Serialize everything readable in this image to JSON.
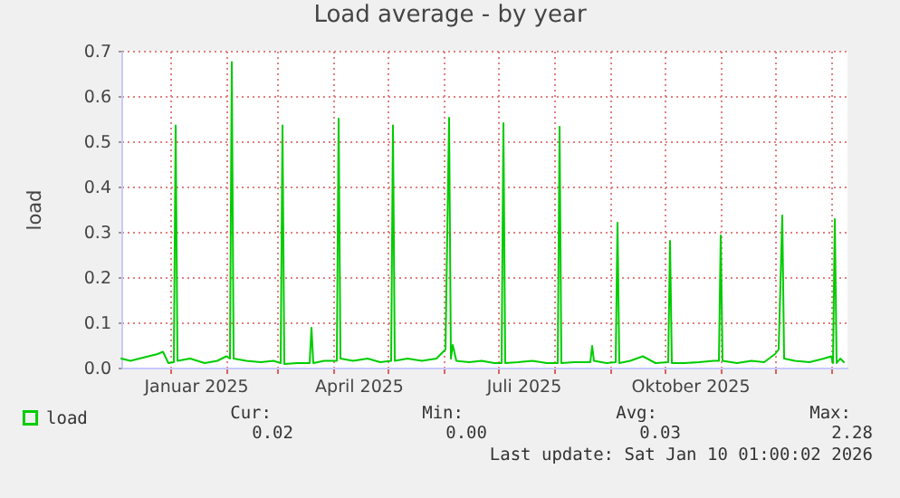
{
  "chart_data": {
    "type": "line",
    "title": "Load average - by year",
    "ylabel": "load",
    "x": [
      "2024-12-05",
      "2024-12-10",
      "2024-12-15",
      "2024-12-20",
      "2024-12-25",
      "2024-12-28",
      "2024-12-31",
      "2025-01-03",
      "2025-01-04",
      "2025-01-05",
      "2025-01-12",
      "2025-01-20",
      "2025-01-27",
      "2025-02-01",
      "2025-02-03",
      "2025-02-04",
      "2025-02-05",
      "2025-02-12",
      "2025-02-20",
      "2025-02-27",
      "2025-03-03",
      "2025-03-04",
      "2025-03-05",
      "2025-03-12",
      "2025-03-19",
      "2025-03-20",
      "2025-03-21",
      "2025-03-27",
      "2025-04-03",
      "2025-04-04",
      "2025-04-05",
      "2025-04-12",
      "2025-04-20",
      "2025-04-27",
      "2025-05-03",
      "2025-05-04",
      "2025-05-05",
      "2025-05-12",
      "2025-05-20",
      "2025-05-28",
      "2025-06-02",
      "2025-06-04",
      "2025-06-05",
      "2025-06-06",
      "2025-06-08",
      "2025-06-15",
      "2025-06-22",
      "2025-06-29",
      "2025-07-03",
      "2025-07-04",
      "2025-07-05",
      "2025-07-12",
      "2025-07-20",
      "2025-07-28",
      "2025-08-03",
      "2025-08-04",
      "2025-08-05",
      "2025-08-12",
      "2025-08-21",
      "2025-08-22",
      "2025-08-23",
      "2025-08-30",
      "2025-09-04",
      "2025-09-05",
      "2025-09-06",
      "2025-09-12",
      "2025-09-19",
      "2025-09-26",
      "2025-10-03",
      "2025-10-04",
      "2025-10-05",
      "2025-10-12",
      "2025-10-20",
      "2025-10-28",
      "2025-10-31",
      "2025-11-01",
      "2025-11-02",
      "2025-11-10",
      "2025-11-18",
      "2025-11-25",
      "2025-12-01",
      "2025-12-03",
      "2025-12-05",
      "2025-12-06",
      "2025-12-12",
      "2025-12-20",
      "2025-12-28",
      "2026-01-01",
      "2026-01-02",
      "2026-01-03",
      "2026-01-04",
      "2026-01-06",
      "2026-01-08"
    ],
    "series": [
      {
        "name": "load",
        "color": "#00cc00",
        "values": [
          0.02,
          0.015,
          0.02,
          0.025,
          0.03,
          0.035,
          0.01,
          0.012,
          0.535,
          0.015,
          0.02,
          0.01,
          0.015,
          0.025,
          0.02,
          0.675,
          0.02,
          0.015,
          0.012,
          0.015,
          0.01,
          0.535,
          0.008,
          0.01,
          0.01,
          0.088,
          0.01,
          0.015,
          0.015,
          0.55,
          0.02,
          0.015,
          0.02,
          0.012,
          0.015,
          0.535,
          0.015,
          0.02,
          0.015,
          0.02,
          0.04,
          0.552,
          0.02,
          0.05,
          0.015,
          0.012,
          0.015,
          0.01,
          0.01,
          0.54,
          0.01,
          0.012,
          0.015,
          0.01,
          0.01,
          0.532,
          0.01,
          0.012,
          0.012,
          0.048,
          0.015,
          0.01,
          0.012,
          0.32,
          0.01,
          0.015,
          0.025,
          0.01,
          0.012,
          0.28,
          0.01,
          0.01,
          0.012,
          0.015,
          0.015,
          0.292,
          0.015,
          0.01,
          0.015,
          0.012,
          0.03,
          0.04,
          0.336,
          0.02,
          0.015,
          0.012,
          0.02,
          0.025,
          0.01,
          0.328,
          0.01,
          0.02,
          0.012
        ]
      }
    ],
    "xlim": [
      "2024-12-05",
      "2026-01-10"
    ],
    "xticks": [
      {
        "value": "2025-01-01",
        "label": null
      },
      {
        "value": "2025-01-15",
        "label": "Januar 2025"
      },
      {
        "value": "2025-02-01",
        "label": null
      },
      {
        "value": "2025-03-01",
        "label": null
      },
      {
        "value": "2025-04-01",
        "label": null
      },
      {
        "value": "2025-04-15",
        "label": "April 2025"
      },
      {
        "value": "2025-05-01",
        "label": null
      },
      {
        "value": "2025-06-01",
        "label": null
      },
      {
        "value": "2025-07-01",
        "label": null
      },
      {
        "value": "2025-07-15",
        "label": "Juli 2025"
      },
      {
        "value": "2025-08-01",
        "label": null
      },
      {
        "value": "2025-09-01",
        "label": null
      },
      {
        "value": "2025-10-01",
        "label": null
      },
      {
        "value": "2025-10-15",
        "label": "Oktober 2025"
      },
      {
        "value": "2025-11-01",
        "label": null
      },
      {
        "value": "2025-12-01",
        "label": null
      },
      {
        "value": "2026-01-01",
        "label": null
      }
    ],
    "ylim": [
      0,
      0.7
    ],
    "yticks": [
      {
        "value": 0,
        "label": "0.0"
      },
      0.1,
      0.2,
      0.3,
      0.4,
      0.5,
      0.6,
      0.7
    ],
    "grid": true,
    "legend": "bottom left",
    "marker": "none",
    "line_style": "solid",
    "annotations": [
      "Cur:",
      "Min:",
      "Avg:",
      "Max:",
      "0.02",
      "0.00",
      "0.03",
      "2.28",
      "Last update: Sat Jan 10 01:00:02 2026"
    ]
  }
}
